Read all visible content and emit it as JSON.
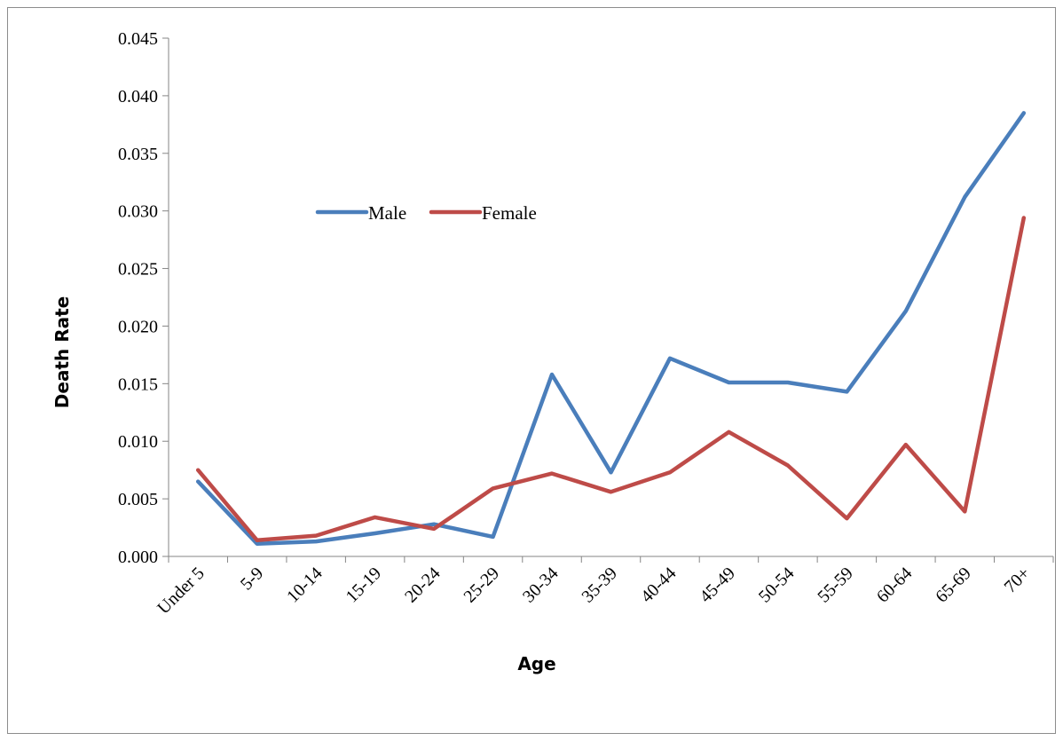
{
  "chart_data": {
    "type": "line",
    "title": "",
    "xlabel": "Age",
    "ylabel": "Death Rate",
    "categories": [
      "Under 5",
      "5-9",
      "10-14",
      "15-19",
      "20-24",
      "25-29",
      "30-34",
      "35-39",
      "40-44",
      "45-49",
      "50-54",
      "55-59",
      "60-64",
      "65-69",
      "70+"
    ],
    "ylim": [
      0,
      0.045
    ],
    "yticks": [
      "0.000",
      "0.005",
      "0.010",
      "0.015",
      "0.020",
      "0.025",
      "0.030",
      "0.035",
      "0.040",
      "0.045"
    ],
    "grid": false,
    "legend_position": "upper-left-inside",
    "series": [
      {
        "name": "Male",
        "color": "#4a7ebb",
        "values": [
          0.0065,
          0.0011,
          0.0013,
          0.002,
          0.0028,
          0.0017,
          0.0158,
          0.0073,
          0.0172,
          0.0151,
          0.0151,
          0.0143,
          0.0213,
          0.0312,
          0.0385
        ]
      },
      {
        "name": "Female",
        "color": "#be4b48",
        "values": [
          0.0075,
          0.0014,
          0.0018,
          0.0034,
          0.0024,
          0.0059,
          0.0072,
          0.0056,
          0.0073,
          0.0108,
          0.0079,
          0.0033,
          0.0097,
          0.0039,
          0.0294
        ]
      }
    ]
  }
}
